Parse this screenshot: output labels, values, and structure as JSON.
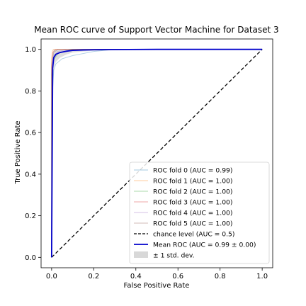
{
  "chart_data": {
    "type": "line",
    "title": "Mean ROC curve of Support Vector Machine for Dataset 3",
    "xlabel": "False Positive Rate",
    "ylabel": "True Positive Rate",
    "xlim": [
      -0.05,
      1.05
    ],
    "ylim": [
      -0.05,
      1.05
    ],
    "xticks": [
      0.0,
      0.2,
      0.4,
      0.6,
      0.8,
      1.0
    ],
    "yticks": [
      0.0,
      0.2,
      0.4,
      0.6,
      0.8,
      1.0
    ],
    "xtick_labels": [
      "0.0",
      "0.2",
      "0.4",
      "0.6",
      "0.8",
      "1.0"
    ],
    "ytick_labels": [
      "0.0",
      "0.2",
      "0.4",
      "0.6",
      "0.8",
      "1.0"
    ],
    "grid": false,
    "legend_position": "lower-right",
    "series": [
      {
        "name": "ROC fold 0 (AUC = 0.99)",
        "color": "#1f77b4",
        "style": "thin",
        "x": [
          0,
          0,
          0.01,
          0.02,
          0.05,
          0.1,
          0.15,
          0.2,
          0.3,
          1.0
        ],
        "y": [
          0,
          0.72,
          0.9,
          0.93,
          0.955,
          0.97,
          0.98,
          0.99,
          1.0,
          1.0
        ]
      },
      {
        "name": "ROC fold 1 (AUC = 1.00)",
        "color": "#ff7f0e",
        "style": "thin",
        "x": [
          0,
          0,
          0.005,
          0.01,
          1.0
        ],
        "y": [
          0,
          0.96,
          0.995,
          1.0,
          1.0
        ]
      },
      {
        "name": "ROC fold 2 (AUC = 1.00)",
        "color": "#2ca02c",
        "style": "thin",
        "x": [
          0,
          0,
          0.01,
          0.03,
          0.06,
          0.1,
          1.0
        ],
        "y": [
          0,
          0.88,
          0.95,
          0.98,
          0.99,
          1.0,
          1.0
        ]
      },
      {
        "name": "ROC fold 3 (AUC = 1.00)",
        "color": "#d62728",
        "style": "thin",
        "x": [
          0,
          0,
          0.005,
          0.02,
          1.0
        ],
        "y": [
          0,
          0.92,
          0.985,
          1.0,
          1.0
        ]
      },
      {
        "name": "ROC fold 4 (AUC = 1.00)",
        "color": "#9467bd",
        "style": "thin",
        "x": [
          0,
          0,
          0.01,
          0.03,
          0.08,
          1.0
        ],
        "y": [
          0,
          0.9,
          0.97,
          0.99,
          1.0,
          1.0
        ]
      },
      {
        "name": "ROC fold 5 (AUC = 1.00)",
        "color": "#8c564b",
        "style": "thin",
        "x": [
          0,
          0,
          0.01,
          0.03,
          1.0
        ],
        "y": [
          0,
          0.93,
          0.985,
          1.0,
          1.0
        ]
      },
      {
        "name": "chance level (AUC = 0.5)",
        "color": "#000000",
        "style": "dashed",
        "x": [
          0,
          1
        ],
        "y": [
          0,
          1
        ]
      },
      {
        "name": "Mean ROC (AUC = 0.99 ± 0.00)",
        "color": "#0000cc",
        "style": "bold",
        "x": [
          0,
          0.005,
          0.01,
          0.02,
          0.04,
          0.07,
          0.1,
          0.15,
          0.2,
          0.3,
          0.5,
          1.0
        ],
        "y": [
          0,
          0.91,
          0.96,
          0.976,
          0.985,
          0.991,
          0.995,
          0.997,
          0.998,
          0.999,
          1.0,
          1.0
        ]
      }
    ],
    "std_band": {
      "name": "± 1 std. dev.",
      "color": "#c8c8c8",
      "x": [
        0,
        0.005,
        0.01,
        0.02,
        0.04,
        0.07,
        0.1,
        0.15,
        0.2,
        0.3,
        0.5,
        1.0
      ],
      "upper": [
        0,
        0.98,
        1.0,
        1.0,
        1.0,
        1.0,
        1.0,
        1.0,
        1.0,
        1.0,
        1.0,
        1.0
      ],
      "lower": [
        0,
        0.82,
        0.91,
        0.94,
        0.96,
        0.975,
        0.985,
        0.99,
        0.993,
        0.996,
        1.0,
        1.0
      ]
    }
  }
}
